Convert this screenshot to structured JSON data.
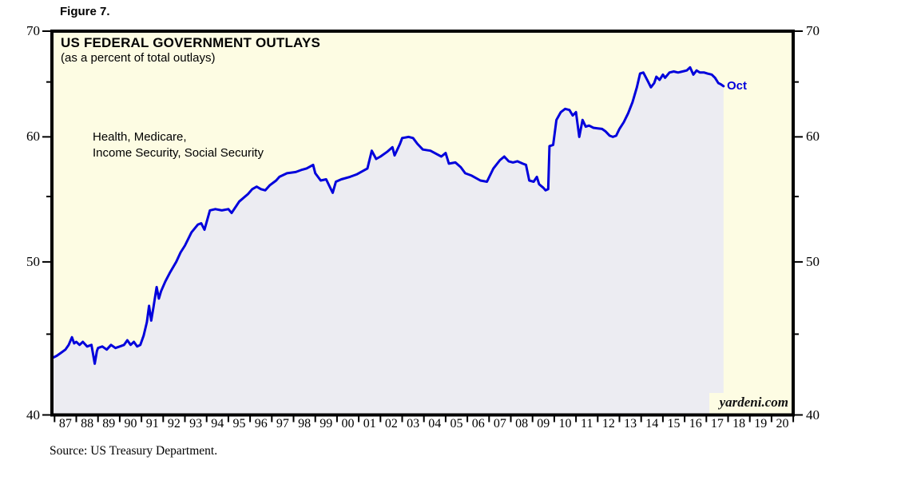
{
  "figure_label": "Figure 7.",
  "header": {
    "title": "US FEDERAL GOVERNMENT OUTLAYS",
    "subtitle": "(as a percent of total outlays)"
  },
  "annotation": {
    "line1": "Health, Medicare,",
    "line2": "Income Security, Social Security"
  },
  "last_point_label": "Oct",
  "watermark": "yardeni.com",
  "source_note": "Source: US Treasury Department.",
  "colors": {
    "plot_background": "#FDFCE3",
    "area_fill": "#ECECF2",
    "line": "#0000DC",
    "axis": "#000000",
    "last_point_label": "#0000DC"
  },
  "chart_data": {
    "type": "line",
    "title": "US FEDERAL GOVERNMENT OUTLAYS",
    "subtitle": "(as a percent of total outlays)",
    "series_label": "Health, Medicare, Income Security, Social Security",
    "y_scale": "ratio (log)",
    "ylim": [
      40,
      70
    ],
    "y_ticks_major": [
      70,
      60,
      50,
      40
    ],
    "y_ticks_minor": [
      65,
      55,
      45
    ],
    "x_start_year": 1987,
    "x_end_year": 2021,
    "x_tick_labels": [
      "87",
      "88",
      "89",
      "90",
      "91",
      "92",
      "93",
      "94",
      "95",
      "96",
      "97",
      "98",
      "99",
      "00",
      "01",
      "02",
      "03",
      "04",
      "05",
      "06",
      "07",
      "08",
      "09",
      "10",
      "11",
      "12",
      "13",
      "14",
      "15",
      "16",
      "17",
      "18",
      "19",
      "20"
    ],
    "data_end_label": "Oct",
    "data_end_year": 2017.79,
    "grid": false,
    "legend": "none",
    "points": [
      [
        1986.95,
        43.5
      ],
      [
        1987.1,
        43.6
      ],
      [
        1987.3,
        43.8
      ],
      [
        1987.5,
        44.0
      ],
      [
        1987.65,
        44.3
      ],
      [
        1987.8,
        44.8
      ],
      [
        1987.9,
        44.4
      ],
      [
        1988.0,
        44.5
      ],
      [
        1988.15,
        44.3
      ],
      [
        1988.3,
        44.5
      ],
      [
        1988.5,
        44.2
      ],
      [
        1988.7,
        44.3
      ],
      [
        1988.85,
        43.1
      ],
      [
        1988.95,
        43.9
      ],
      [
        1989.0,
        44.1
      ],
      [
        1989.2,
        44.2
      ],
      [
        1989.4,
        44.0
      ],
      [
        1989.6,
        44.3
      ],
      [
        1989.8,
        44.1
      ],
      [
        1990.0,
        44.2
      ],
      [
        1990.2,
        44.3
      ],
      [
        1990.35,
        44.6
      ],
      [
        1990.5,
        44.3
      ],
      [
        1990.65,
        44.5
      ],
      [
        1990.8,
        44.2
      ],
      [
        1990.95,
        44.3
      ],
      [
        1991.1,
        44.9
      ],
      [
        1991.25,
        45.8
      ],
      [
        1991.35,
        46.9
      ],
      [
        1991.45,
        45.9
      ],
      [
        1991.55,
        46.8
      ],
      [
        1991.7,
        48.2
      ],
      [
        1991.8,
        47.4
      ],
      [
        1991.9,
        47.9
      ],
      [
        1992.1,
        48.6
      ],
      [
        1992.3,
        49.2
      ],
      [
        1992.6,
        50.0
      ],
      [
        1992.8,
        50.7
      ],
      [
        1993.0,
        51.2
      ],
      [
        1993.3,
        52.2
      ],
      [
        1993.6,
        52.8
      ],
      [
        1993.75,
        52.9
      ],
      [
        1993.9,
        52.4
      ],
      [
        1994.15,
        53.9
      ],
      [
        1994.4,
        54.0
      ],
      [
        1994.7,
        53.9
      ],
      [
        1995.0,
        54.0
      ],
      [
        1995.15,
        53.7
      ],
      [
        1995.5,
        54.6
      ],
      [
        1995.9,
        55.2
      ],
      [
        1996.1,
        55.6
      ],
      [
        1996.3,
        55.8
      ],
      [
        1996.5,
        55.6
      ],
      [
        1996.7,
        55.5
      ],
      [
        1996.9,
        55.9
      ],
      [
        1997.2,
        56.3
      ],
      [
        1997.35,
        56.6
      ],
      [
        1997.7,
        56.9
      ],
      [
        1998.1,
        57.0
      ],
      [
        1998.4,
        57.2
      ],
      [
        1998.6,
        57.3
      ],
      [
        1998.9,
        57.6
      ],
      [
        1999.0,
        56.9
      ],
      [
        1999.25,
        56.3
      ],
      [
        1999.5,
        56.4
      ],
      [
        1999.8,
        55.3
      ],
      [
        1999.95,
        56.2
      ],
      [
        2000.2,
        56.4
      ],
      [
        2000.6,
        56.6
      ],
      [
        2000.9,
        56.8
      ],
      [
        2001.2,
        57.1
      ],
      [
        2001.4,
        57.3
      ],
      [
        2001.6,
        58.8
      ],
      [
        2001.8,
        58.1
      ],
      [
        2002.0,
        58.3
      ],
      [
        2002.3,
        58.7
      ],
      [
        2002.55,
        59.1
      ],
      [
        2002.65,
        58.4
      ],
      [
        2002.9,
        59.4
      ],
      [
        2003.0,
        59.9
      ],
      [
        2003.3,
        60.0
      ],
      [
        2003.5,
        59.9
      ],
      [
        2003.7,
        59.4
      ],
      [
        2003.95,
        58.9
      ],
      [
        2004.3,
        58.8
      ],
      [
        2004.6,
        58.5
      ],
      [
        2004.8,
        58.3
      ],
      [
        2005.0,
        58.6
      ],
      [
        2005.15,
        57.7
      ],
      [
        2005.45,
        57.8
      ],
      [
        2005.7,
        57.4
      ],
      [
        2005.9,
        56.9
      ],
      [
        2006.2,
        56.7
      ],
      [
        2006.6,
        56.3
      ],
      [
        2006.9,
        56.2
      ],
      [
        2007.2,
        57.3
      ],
      [
        2007.5,
        58.0
      ],
      [
        2007.7,
        58.3
      ],
      [
        2007.9,
        57.9
      ],
      [
        2008.1,
        57.8
      ],
      [
        2008.3,
        57.9
      ],
      [
        2008.55,
        57.7
      ],
      [
        2008.7,
        57.6
      ],
      [
        2008.85,
        56.3
      ],
      [
        2009.05,
        56.2
      ],
      [
        2009.2,
        56.6
      ],
      [
        2009.3,
        56.0
      ],
      [
        2009.5,
        55.7
      ],
      [
        2009.6,
        55.5
      ],
      [
        2009.72,
        55.6
      ],
      [
        2009.78,
        59.2
      ],
      [
        2009.95,
        59.3
      ],
      [
        2010.1,
        61.5
      ],
      [
        2010.3,
        62.2
      ],
      [
        2010.5,
        62.5
      ],
      [
        2010.7,
        62.4
      ],
      [
        2010.85,
        61.9
      ],
      [
        2011.0,
        62.2
      ],
      [
        2011.15,
        60.0
      ],
      [
        2011.3,
        61.5
      ],
      [
        2011.45,
        60.9
      ],
      [
        2011.6,
        61.0
      ],
      [
        2011.8,
        60.8
      ],
      [
        2012.0,
        60.75
      ],
      [
        2012.2,
        60.7
      ],
      [
        2012.35,
        60.5
      ],
      [
        2012.55,
        60.1
      ],
      [
        2012.7,
        60.0
      ],
      [
        2012.85,
        60.1
      ],
      [
        2013.0,
        60.7
      ],
      [
        2013.2,
        61.3
      ],
      [
        2013.4,
        62.1
      ],
      [
        2013.6,
        63.1
      ],
      [
        2013.8,
        64.5
      ],
      [
        2013.95,
        65.8
      ],
      [
        2014.1,
        65.9
      ],
      [
        2014.3,
        65.1
      ],
      [
        2014.45,
        64.5
      ],
      [
        2014.6,
        64.9
      ],
      [
        2014.7,
        65.5
      ],
      [
        2014.85,
        65.2
      ],
      [
        2015.0,
        65.7
      ],
      [
        2015.1,
        65.4
      ],
      [
        2015.3,
        65.9
      ],
      [
        2015.5,
        66.0
      ],
      [
        2015.7,
        65.9
      ],
      [
        2015.9,
        66.0
      ],
      [
        2016.1,
        66.1
      ],
      [
        2016.25,
        66.4
      ],
      [
        2016.4,
        65.7
      ],
      [
        2016.55,
        66.1
      ],
      [
        2016.7,
        65.9
      ],
      [
        2016.9,
        65.9
      ],
      [
        2017.05,
        65.8
      ],
      [
        2017.25,
        65.7
      ],
      [
        2017.4,
        65.4
      ],
      [
        2017.55,
        64.9
      ],
      [
        2017.65,
        64.8
      ],
      [
        2017.79,
        64.6
      ]
    ]
  }
}
